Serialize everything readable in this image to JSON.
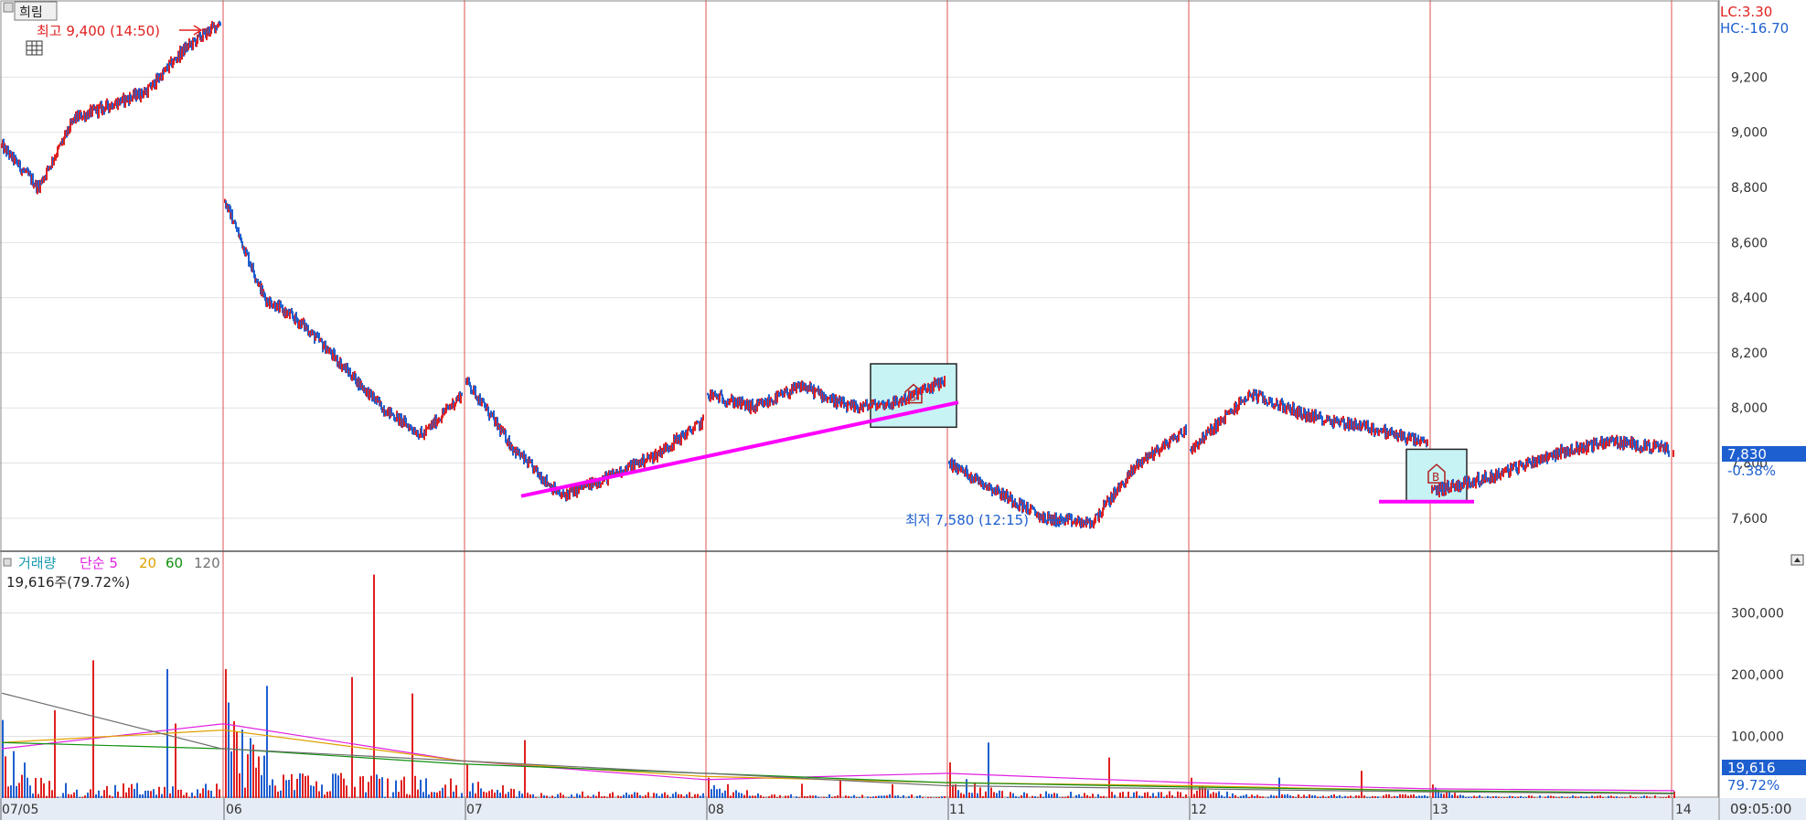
{
  "price_panel": {
    "name": "희림",
    "lc": "LC:3.30",
    "hc": "HC:-16.70",
    "high_label": "최고 9,400 (14:50)",
    "low_label": "최저 7,580 (12:15)",
    "last_price": "7,830",
    "change_pct": "-0.38%",
    "colors": {
      "up": "#e02020",
      "down": "#1e5fd0",
      "trendline": "#ff00ff",
      "box_fill": "#c7f3f5",
      "session_line": "#e05050"
    }
  },
  "volume_panel": {
    "legend": {
      "label": "거래량",
      "ma5": "단순 5",
      "ma20": "20",
      "ma60": "60",
      "ma120": "120"
    },
    "summary": "19,616주(79.72%)",
    "last_volume": "19,616",
    "last_pct": "79.72%",
    "colors": {
      "ma5": "#e020e0",
      "ma20": "#e0a000",
      "ma60": "#109010",
      "ma120": "#707070"
    }
  },
  "x_axis": {
    "dates": [
      "07/05",
      "06",
      "07",
      "08",
      "11",
      "12",
      "13",
      "14"
    ],
    "time": "09:05:00"
  },
  "chart_data": [
    {
      "type": "line",
      "title": "희림",
      "y_ticks": [
        7600,
        7800,
        8000,
        8200,
        8400,
        8600,
        8800,
        9000,
        9200
      ],
      "y_tick_labels": [
        "7,600",
        "7,800",
        "8,000",
        "8,200",
        "8,400",
        "8,600",
        "8,800",
        "9,000",
        "9,200"
      ],
      "ylim": [
        7480,
        9480
      ],
      "x": [
        "07/05",
        "06",
        "07",
        "08",
        "11",
        "12",
        "13",
        "14"
      ],
      "series": [
        {
          "name": "",
          "points": [
            {
              "x": "07/05",
              "y": 8950
            },
            {
              "x": "07/05",
              "y": 8800
            },
            {
              "x": "07/05",
              "y": 9050
            },
            {
              "x": "07/05",
              "y": 9100
            },
            {
              "x": "07/05",
              "y": 9150
            },
            {
              "x": "07/05",
              "y": 9300
            },
            {
              "x": "07/05",
              "y": 9400
            },
            {
              "x": "06",
              "y": 8750
            },
            {
              "x": "06",
              "y": 8400
            },
            {
              "x": "06",
              "y": 8300
            },
            {
              "x": "06",
              "y": 8150
            },
            {
              "x": "06",
              "y": 8000
            },
            {
              "x": "06",
              "y": 7900
            },
            {
              "x": "06",
              "y": 8050
            },
            {
              "x": "07",
              "y": 8100
            },
            {
              "x": "07",
              "y": 7850
            },
            {
              "x": "07",
              "y": 7680
            },
            {
              "x": "07",
              "y": 7750
            },
            {
              "x": "07",
              "y": 7830
            },
            {
              "x": "07",
              "y": 7950
            },
            {
              "x": "08",
              "y": 8050
            },
            {
              "x": "08",
              "y": 8000
            },
            {
              "x": "08",
              "y": 8080
            },
            {
              "x": "08",
              "y": 8000
            },
            {
              "x": "08",
              "y": 8020
            },
            {
              "x": "08",
              "y": 8100
            },
            {
              "x": "11",
              "y": 7800
            },
            {
              "x": "11",
              "y": 7700
            },
            {
              "x": "11",
              "y": 7600
            },
            {
              "x": "11",
              "y": 7580
            },
            {
              "x": "11",
              "y": 7800
            },
            {
              "x": "11",
              "y": 7920
            },
            {
              "x": "12",
              "y": 7850
            },
            {
              "x": "12",
              "y": 8050
            },
            {
              "x": "12",
              "y": 7970
            },
            {
              "x": "12",
              "y": 7930
            },
            {
              "x": "12",
              "y": 7870
            },
            {
              "x": "13",
              "y": 7700
            },
            {
              "x": "13",
              "y": 7750
            },
            {
              "x": "13",
              "y": 7830
            },
            {
              "x": "13",
              "y": 7880
            },
            {
              "x": "13",
              "y": 7850
            },
            {
              "x": "14",
              "y": 7830
            }
          ]
        }
      ]
    },
    {
      "type": "bar",
      "title": "거래량",
      "y_ticks": [
        100000,
        200000,
        300000
      ],
      "y_tick_labels": [
        "100,000",
        "200,000",
        "300,000"
      ],
      "ylim": [
        0,
        400000
      ],
      "x": [
        "07/05",
        "06",
        "07",
        "08",
        "11",
        "12",
        "13",
        "14"
      ],
      "series": [
        {
          "name": "거래량",
          "values": [
            230000,
            380000,
            100000,
            60000,
            105000,
            60000,
            40000,
            19616
          ]
        },
        {
          "name": "단순 5",
          "values": [
            80000,
            120000,
            60000,
            30000,
            40000,
            25000,
            15000,
            12000
          ]
        },
        {
          "name": "20",
          "values": [
            90000,
            110000,
            60000,
            35000,
            25000,
            20000,
            12000,
            8000
          ]
        },
        {
          "name": "60",
          "values": [
            90000,
            80000,
            55000,
            40000,
            25000,
            18000,
            12000,
            8000
          ]
        },
        {
          "name": "120",
          "values": [
            170000,
            80000,
            60000,
            40000,
            20000,
            15000,
            10000,
            7000
          ]
        }
      ]
    }
  ]
}
